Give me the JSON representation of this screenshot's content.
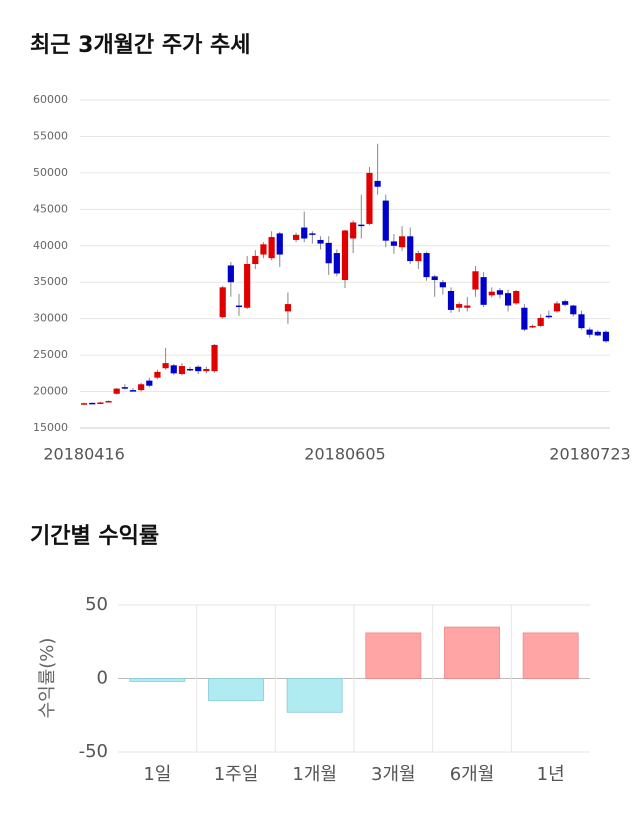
{
  "chart_data": [
    {
      "type": "candlestick",
      "title": "최근 3개월간 주가 추세",
      "categories": [
        "20180416",
        null,
        null,
        null,
        null,
        null,
        null,
        null,
        null,
        null,
        null,
        null,
        null,
        null,
        null,
        null,
        null,
        null,
        null,
        null,
        null,
        null,
        null,
        null,
        null,
        null,
        null,
        null,
        null,
        null,
        null,
        null,
        "20180605",
        null,
        null,
        null,
        null,
        null,
        null,
        null,
        null,
        null,
        null,
        null,
        null,
        null,
        null,
        null,
        null,
        null,
        null,
        null,
        null,
        null,
        null,
        null,
        null,
        null,
        null,
        null,
        null,
        null,
        null,
        null,
        "20180723"
      ],
      "open": [
        18400,
        18450,
        18500,
        18600,
        19700,
        20600,
        20200,
        20200,
        21500,
        21900,
        23200,
        23600,
        22400,
        23100,
        23400,
        22800,
        22800,
        30200,
        37300,
        31800,
        31500,
        37500,
        38800,
        38300,
        41700,
        31000,
        40800,
        42500,
        41700,
        40800,
        40400,
        39000,
        35300,
        41000,
        42900,
        43000,
        48900,
        46200,
        40600,
        39800,
        41300,
        37900,
        39000,
        35800,
        35000,
        33800,
        31500,
        31500,
        34000,
        35700,
        33200,
        33900,
        33500,
        32100,
        31500,
        28900,
        29000,
        30400,
        31000,
        32400,
        31800,
        30600,
        28500,
        28200,
        28200
      ],
      "high": [
        18500,
        18500,
        18600,
        18800,
        20500,
        21000,
        20500,
        21200,
        21900,
        23000,
        26000,
        23800,
        23900,
        23400,
        23600,
        23400,
        26500,
        34500,
        37800,
        33400,
        38600,
        39400,
        40500,
        42000,
        41900,
        33600,
        41800,
        44700,
        42000,
        41300,
        41300,
        39500,
        42200,
        43500,
        47000,
        50800,
        54000,
        47000,
        41600,
        42700,
        42500,
        39300,
        39200,
        36000,
        35300,
        34300,
        32300,
        33000,
        37200,
        36400,
        34300,
        34200,
        34000,
        33900,
        32000,
        29200,
        30600,
        31100,
        32400,
        32600,
        31900,
        31100,
        28800,
        28400,
        28400
      ],
      "low": [
        18300,
        18300,
        18400,
        18500,
        19600,
        20300,
        20000,
        20000,
        20600,
        21700,
        23000,
        22300,
        22200,
        22800,
        22400,
        22500,
        22600,
        30000,
        33000,
        30400,
        31300,
        36800,
        38300,
        38000,
        37100,
        29300,
        40500,
        40500,
        40300,
        39500,
        36000,
        35800,
        34200,
        39000,
        41000,
        42800,
        47000,
        39800,
        38900,
        39300,
        37500,
        36800,
        35200,
        33000,
        33300,
        30800,
        30900,
        31000,
        33000,
        31600,
        32900,
        32800,
        31000,
        31900,
        28300,
        28700,
        28800,
        30000,
        30800,
        31700,
        30300,
        28500,
        27400,
        27600,
        26700
      ],
      "close": [
        18400,
        18400,
        18500,
        18700,
        20400,
        20400,
        20100,
        21000,
        20800,
        22700,
        23900,
        22500,
        23500,
        23000,
        22800,
        23100,
        26400,
        34300,
        35000,
        31600,
        37500,
        38600,
        40200,
        41200,
        38800,
        32000,
        41500,
        41000,
        41500,
        40300,
        37600,
        36200,
        42100,
        43200,
        42700,
        50000,
        48100,
        40700,
        40000,
        41300,
        37900,
        39000,
        35700,
        35300,
        34300,
        31200,
        32000,
        31800,
        36500,
        31900,
        33700,
        33300,
        31800,
        33800,
        28500,
        29000,
        30100,
        30200,
        32100,
        31900,
        30600,
        28700,
        27800,
        27700,
        26900
      ],
      "up_color": "#e00000",
      "down_color": "#0000cc",
      "ylim": [
        15000,
        60000
      ],
      "yticks": [
        15000,
        20000,
        25000,
        30000,
        35000,
        40000,
        45000,
        50000,
        55000,
        60000
      ],
      "grid": true
    },
    {
      "type": "bar",
      "title": "기간별 수익률",
      "ylabel": "수익률(%)",
      "categories": [
        "1일",
        "1주일",
        "1개월",
        "3개월",
        "6개월",
        "1년"
      ],
      "values": [
        -2,
        -15,
        -23,
        31,
        35,
        31
      ],
      "positive_color": "#ffa5a5",
      "negative_color": "#b0ebf2",
      "ylim": [
        -50,
        50
      ],
      "yticks": [
        -50,
        0,
        50
      ],
      "grid": true
    }
  ]
}
